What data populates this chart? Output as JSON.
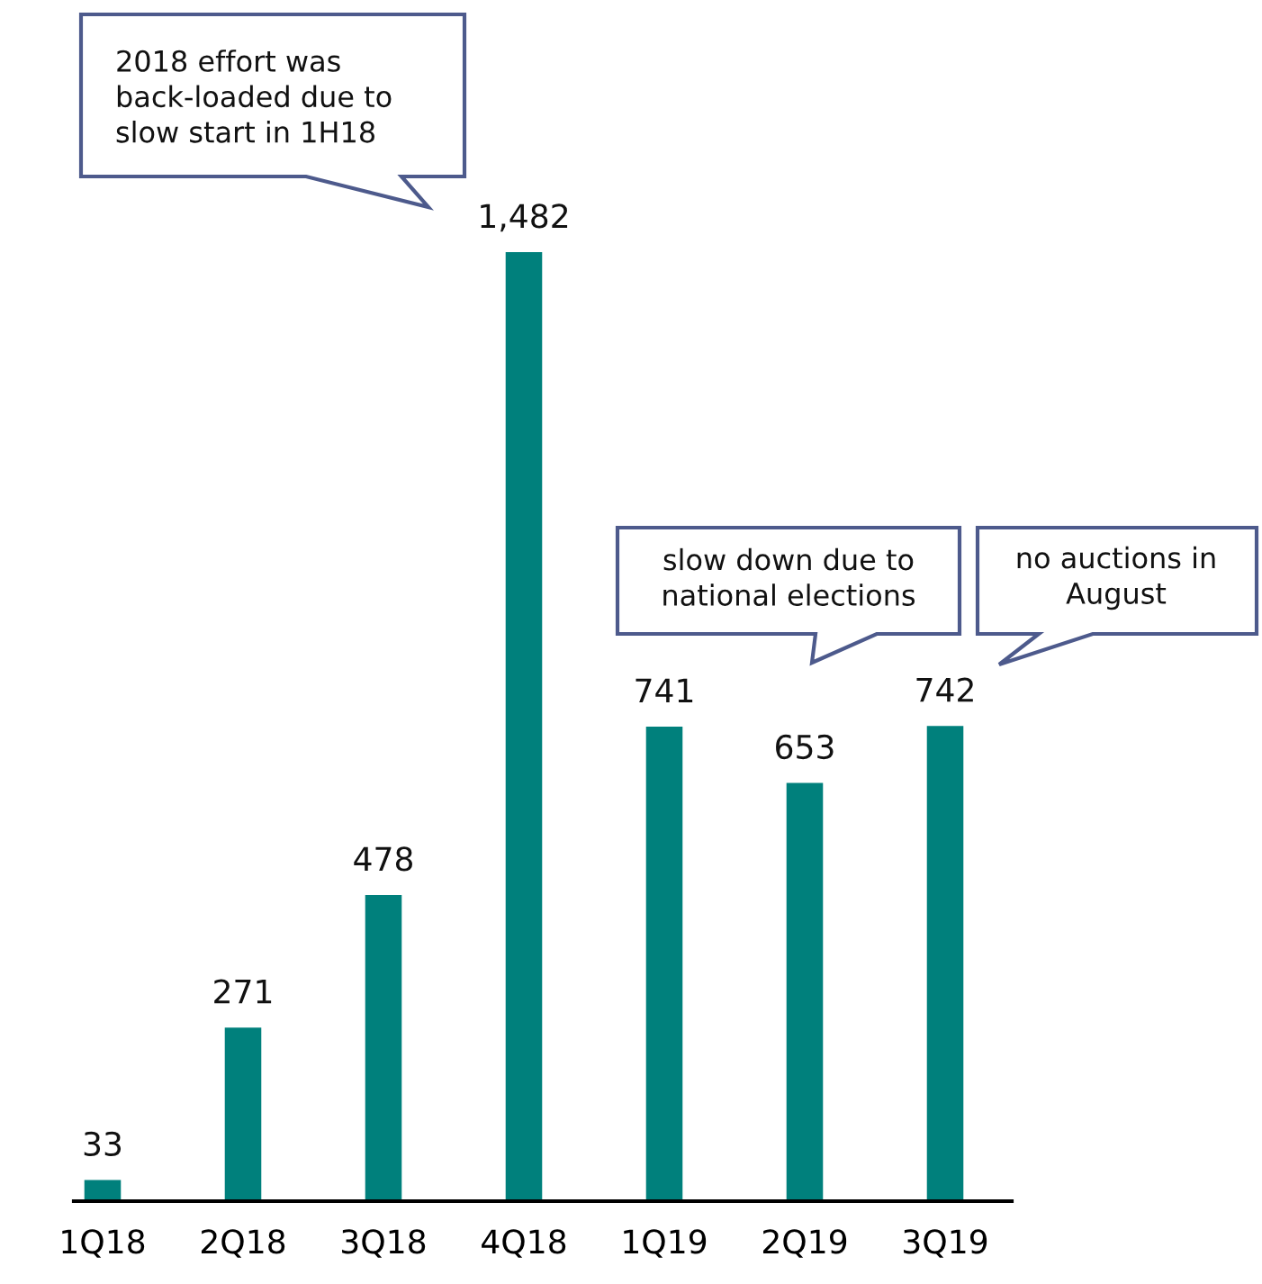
{
  "chart_data": {
    "type": "bar",
    "categories": [
      "1Q18",
      "2Q18",
      "3Q18",
      "4Q18",
      "1Q19",
      "2Q19",
      "3Q19"
    ],
    "values": [
      33,
      271,
      478,
      1482,
      741,
      653,
      742
    ],
    "color": "#00807c",
    "value_labels": [
      "33",
      "271",
      "478",
      "1,482",
      "741",
      "653",
      "742"
    ],
    "tick_labels": "x",
    "annotations": [
      "2018 effort was\nback-loaded due to\nslow start in 1H18",
      "slow down due to\nnational elections",
      "no auctions in\nAugust"
    ]
  }
}
